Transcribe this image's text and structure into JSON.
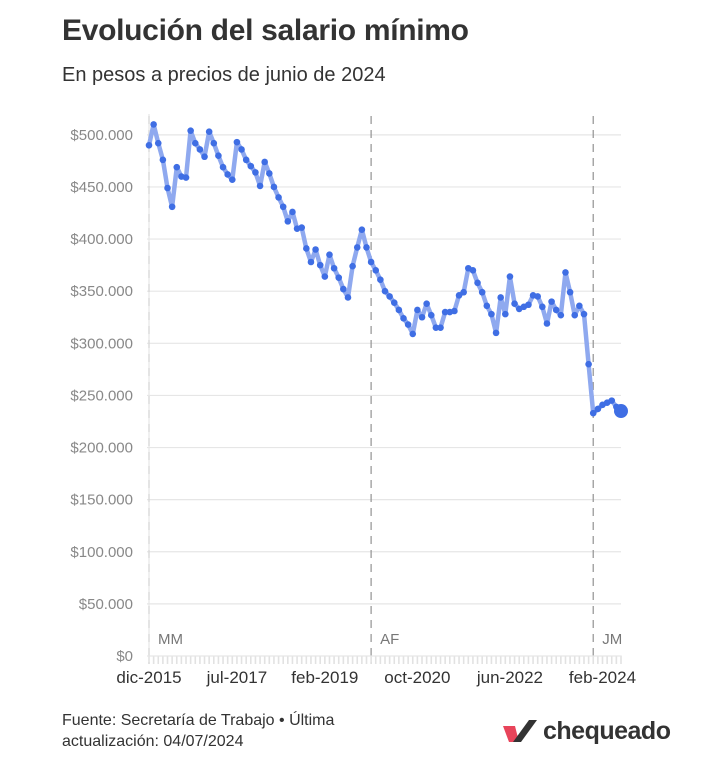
{
  "chart_data": {
    "type": "line",
    "title": "Evolución del salario mínimo",
    "subtitle": "En pesos a precios de junio de 2024",
    "xlabel": "",
    "ylabel": "",
    "ylim": [
      0,
      520000
    ],
    "y_ticks": [
      {
        "value": 0,
        "label": "$0"
      },
      {
        "value": 50000,
        "label": "$50.000"
      },
      {
        "value": 100000,
        "label": "$100.000"
      },
      {
        "value": 150000,
        "label": "$150.000"
      },
      {
        "value": 200000,
        "label": "$200.000"
      },
      {
        "value": 250000,
        "label": "$250.000"
      },
      {
        "value": 300000,
        "label": "$300.000"
      },
      {
        "value": 350000,
        "label": "$350.000"
      },
      {
        "value": 400000,
        "label": "$400.000"
      },
      {
        "value": 450000,
        "label": "$450.000"
      },
      {
        "value": 500000,
        "label": "$500.000"
      }
    ],
    "x_ticks": [
      {
        "date": "2015-12",
        "label": "dic-2015"
      },
      {
        "date": "2017-07",
        "label": "jul-2017"
      },
      {
        "date": "2019-02",
        "label": "feb-2019"
      },
      {
        "date": "2020-10",
        "label": "oct-2020"
      },
      {
        "date": "2022-06",
        "label": "jun-2022"
      },
      {
        "date": "2024-02",
        "label": "feb-2024"
      }
    ],
    "eras": [
      {
        "start": "2015-12",
        "label": "MM"
      },
      {
        "start": "2019-12",
        "label": "AF"
      },
      {
        "start": "2023-12",
        "label": "JM"
      }
    ],
    "x_range": [
      "2015-12",
      "2024-06"
    ],
    "grid": true,
    "legend": "none",
    "line_color": "#8FA9EF",
    "point_color": "#3F6EE4",
    "series": [
      {
        "x": [
          "2015-12",
          "2016-01",
          "2016-02",
          "2016-03",
          "2016-04",
          "2016-05",
          "2016-06",
          "2016-07",
          "2016-08",
          "2016-09",
          "2016-10",
          "2016-11",
          "2016-12",
          "2017-01",
          "2017-02",
          "2017-03",
          "2017-04",
          "2017-05",
          "2017-06",
          "2017-07",
          "2017-08",
          "2017-09",
          "2017-10",
          "2017-11",
          "2017-12",
          "2018-01",
          "2018-02",
          "2018-03",
          "2018-04",
          "2018-05",
          "2018-06",
          "2018-07",
          "2018-08",
          "2018-09",
          "2018-10",
          "2018-11",
          "2018-12",
          "2019-01",
          "2019-02",
          "2019-03",
          "2019-04",
          "2019-05",
          "2019-06",
          "2019-07",
          "2019-08",
          "2019-09",
          "2019-10",
          "2019-11",
          "2019-12",
          "2020-01",
          "2020-02",
          "2020-03",
          "2020-04",
          "2020-05",
          "2020-06",
          "2020-07",
          "2020-08",
          "2020-09",
          "2020-10",
          "2020-11",
          "2020-12",
          "2021-01",
          "2021-02",
          "2021-03",
          "2021-04",
          "2021-05",
          "2021-06",
          "2021-07",
          "2021-08",
          "2021-09",
          "2021-10",
          "2021-11",
          "2021-12",
          "2022-01",
          "2022-02",
          "2022-03",
          "2022-04",
          "2022-05",
          "2022-06",
          "2022-07",
          "2022-08",
          "2022-09",
          "2022-10",
          "2022-11",
          "2022-12",
          "2023-01",
          "2023-02",
          "2023-03",
          "2023-04",
          "2023-05",
          "2023-06",
          "2023-07",
          "2023-08",
          "2023-09",
          "2023-10",
          "2023-11",
          "2023-12",
          "2024-01",
          "2024-02",
          "2024-03",
          "2024-04",
          "2024-05",
          "2024-06"
        ],
        "values": [
          490000,
          510000,
          492000,
          476000,
          449000,
          431000,
          469000,
          460000,
          459000,
          504000,
          492000,
          486000,
          479000,
          503000,
          492000,
          480000,
          469000,
          462000,
          457000,
          493000,
          486000,
          476000,
          470000,
          464000,
          451000,
          474000,
          463000,
          450000,
          440000,
          431000,
          417000,
          426000,
          410000,
          411000,
          391000,
          378000,
          390000,
          375000,
          364000,
          385000,
          372000,
          363000,
          352000,
          344000,
          374000,
          392000,
          409000,
          392000,
          378000,
          370000,
          361000,
          350000,
          345000,
          339000,
          332000,
          324000,
          318000,
          309000,
          332000,
          325000,
          338000,
          327000,
          315000,
          315000,
          330000,
          330000,
          331000,
          346000,
          349000,
          372000,
          370000,
          358000,
          349000,
          336000,
          328000,
          310000,
          344000,
          328000,
          364000,
          338000,
          333000,
          335000,
          337000,
          346000,
          345000,
          335000,
          319000,
          340000,
          332000,
          327000,
          368000,
          349000,
          327000,
          336000,
          328000,
          280000,
          233000,
          237000,
          241000,
          243000,
          245000,
          239000,
          235000
        ]
      }
    ]
  },
  "footer": {
    "source": "Fuente: Secretaría de Trabajo • Última actualización: 04/07/2024",
    "brand": "chequeado"
  }
}
